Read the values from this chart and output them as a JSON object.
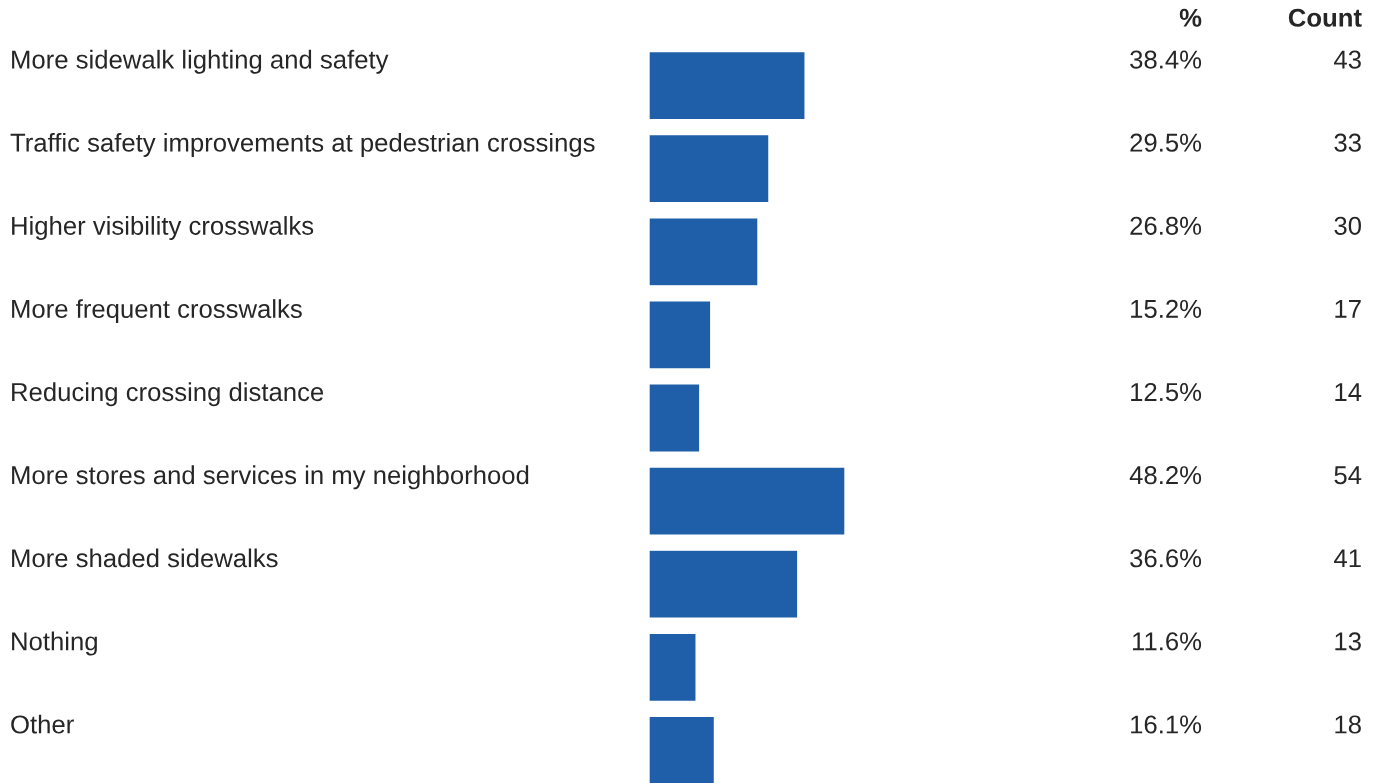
{
  "chart_data": {
    "type": "bar",
    "orientation": "horizontal",
    "tick_labels": "y",
    "categories": [
      "More sidewalk lighting and safety",
      "Traffic safety improvements at pedestrian crossings",
      "Higher visibility crosswalks",
      "More frequent crosswalks",
      "Reducing crossing distance",
      "More stores and services in my neighborhood",
      "More shaded sidewalks",
      "Nothing",
      "Other"
    ],
    "values": [
      38.4,
      29.5,
      26.8,
      15.2,
      12.5,
      48.2,
      36.6,
      11.6,
      16.1
    ],
    "value_labels": [
      "38.4%",
      "29.5%",
      "26.8%",
      "15.2%",
      "12.5%",
      "48.2%",
      "36.6%",
      "11.6%",
      "16.1%"
    ],
    "color": "#1f5ea8",
    "annotations": [
      "%",
      "Count",
      "43",
      "33",
      "30",
      "17",
      "14",
      "54",
      "41",
      "13",
      "18"
    ]
  }
}
